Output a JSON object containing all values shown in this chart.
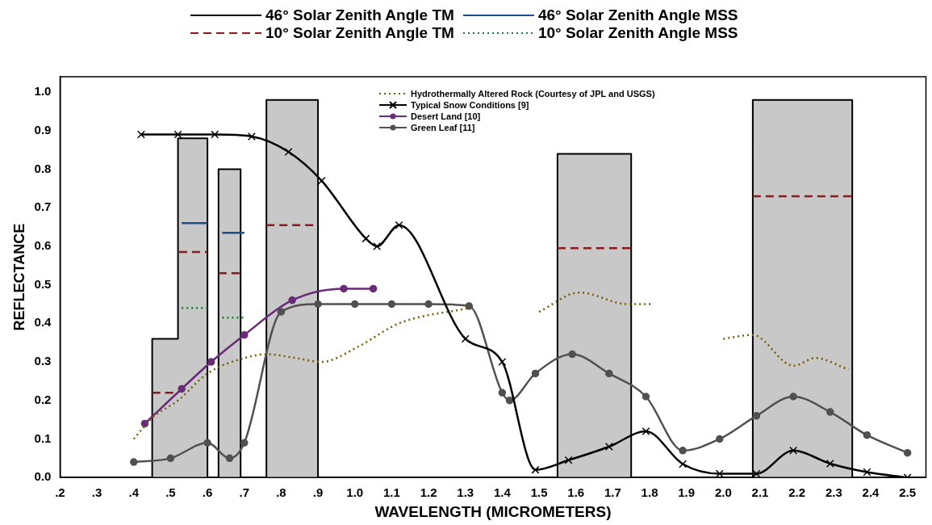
{
  "chart_data": {
    "type": "line",
    "xlabel": "WAVELENGTH (MICROMETERS)",
    "ylabel": "REFLECTANCE",
    "legend": "top",
    "grid": false,
    "xlim": [
      0.2,
      2.55
    ],
    "ylim": [
      0,
      1.04
    ],
    "xticks": [
      {
        "value": 0.2,
        "label": ".2"
      },
      {
        "value": 0.3,
        "label": ".3"
      },
      {
        "value": 0.4,
        "label": ".4"
      },
      {
        "value": 0.5,
        "label": ".5"
      },
      {
        "value": 0.6,
        "label": ".6"
      },
      {
        "value": 0.7,
        "label": ".7"
      },
      {
        "value": 0.8,
        "label": ".8"
      },
      {
        "value": 0.9,
        "label": ".9"
      },
      {
        "value": 1.0,
        "label": "1.0"
      },
      {
        "value": 1.1,
        "label": "1.1"
      },
      {
        "value": 1.2,
        "label": "1.2"
      },
      {
        "value": 1.3,
        "label": "1.3"
      },
      {
        "value": 1.4,
        "label": "1.4"
      },
      {
        "value": 1.5,
        "label": "1.5"
      },
      {
        "value": 1.6,
        "label": "1.6"
      },
      {
        "value": 1.7,
        "label": "1.7"
      },
      {
        "value": 1.8,
        "label": "1.8"
      },
      {
        "value": 1.9,
        "label": "1.9"
      },
      {
        "value": 2.0,
        "label": "2.0"
      },
      {
        "value": 2.1,
        "label": "2.1"
      },
      {
        "value": 2.2,
        "label": "2.2"
      },
      {
        "value": 2.3,
        "label": "2.3"
      },
      {
        "value": 2.4,
        "label": "2.4"
      },
      {
        "value": 2.5,
        "label": "2.5"
      }
    ],
    "yticks": [
      {
        "value": 0,
        "label": "0.0"
      },
      {
        "value": 0.1,
        "label": "0.1"
      },
      {
        "value": 0.2,
        "label": "0.2"
      },
      {
        "value": 0.3,
        "label": "0.3"
      },
      {
        "value": 0.4,
        "label": "0.4"
      },
      {
        "value": 0.5,
        "label": "0.5"
      },
      {
        "value": 0.6,
        "label": "0.6"
      },
      {
        "value": 0.7,
        "label": "0.7"
      },
      {
        "value": 0.8,
        "label": "0.8"
      },
      {
        "value": 0.9,
        "label": "0.9"
      },
      {
        "value": 1.0,
        "label": "1.0"
      }
    ],
    "series": [
      {
        "name": "46° Solar Zenith Angle TM",
        "type": "area",
        "color": "#c8c8c8",
        "line_style": "solid",
        "marker": "none",
        "x": [
          0.45,
          0.45,
          0.52,
          0.52,
          0.6,
          0.6,
          0.615,
          0.63,
          0.63,
          0.69,
          0.69,
          0.725,
          0.76,
          0.76,
          0.9,
          0.9,
          1.2,
          1.55,
          1.55,
          1.75,
          1.75,
          1.9,
          2.08,
          2.08,
          2.35,
          2.35
        ],
        "values": [
          0,
          0.36,
          0.36,
          0.88,
          0.88,
          0,
          null,
          0,
          0.8,
          0.8,
          0,
          null,
          0,
          0.98,
          0.98,
          0,
          null,
          0,
          0.84,
          0.84,
          0,
          null,
          0,
          0.98,
          0.98,
          0
        ]
      },
      {
        "name": "10° Solar Zenith Angle TM",
        "type": "line",
        "color": "#8b1a1a",
        "line_style": "dashed",
        "marker": "none",
        "x": [
          0.45,
          0.485,
          0.52,
          0.521,
          0.523,
          0.56,
          0.6,
          0.61,
          0.63,
          0.66,
          0.69,
          0.72,
          0.76,
          0.83,
          0.9,
          1.2,
          1.55,
          1.65,
          1.75,
          1.9,
          2.08,
          2.2,
          2.35
        ],
        "values": [
          0.22,
          0.22,
          0.22,
          null,
          0.585,
          0.585,
          0.585,
          null,
          0.53,
          0.53,
          0.53,
          null,
          0.655,
          0.655,
          0.655,
          null,
          0.595,
          0.595,
          0.595,
          null,
          0.73,
          0.73,
          0.73
        ]
      },
      {
        "name": "46° Solar Zenith Angle MSS",
        "type": "line",
        "color": "#1a4f8b",
        "line_style": "solid",
        "marker": "none",
        "x": [
          0.53,
          0.565,
          0.6,
          0.62,
          0.64,
          0.67,
          0.7
        ],
        "values": [
          0.66,
          0.66,
          0.66,
          null,
          0.635,
          0.635,
          0.635
        ]
      },
      {
        "name": "10° Solar Zenith Angle MSS",
        "type": "line",
        "color": "#1a7a2e",
        "line_style": "dotted",
        "marker": "none",
        "x": [
          0.53,
          0.565,
          0.6,
          0.62,
          0.64,
          0.67,
          0.7
        ],
        "values": [
          0.44,
          0.44,
          0.44,
          null,
          0.415,
          0.415,
          0.415
        ]
      },
      {
        "name": "Hydrothermally Altered Rock (Courtesy of JPL and USGS)",
        "type": "line",
        "color": "#7a5a00",
        "line_style": "dotted",
        "marker": "none",
        "x": [
          0.4,
          0.45,
          0.52,
          0.6,
          0.7,
          0.76,
          0.84,
          0.91,
          1.01,
          1.12,
          1.31,
          1.4,
          1.5,
          1.61,
          1.74,
          1.81,
          1.9,
          2.0,
          2.08,
          2.19,
          2.25,
          2.34
        ],
        "values": [
          0.1,
          0.155,
          0.2,
          0.27,
          0.31,
          0.32,
          0.31,
          0.3,
          0.34,
          0.4,
          0.44,
          null,
          0.43,
          0.48,
          0.45,
          0.45,
          null,
          0.36,
          0.37,
          0.29,
          0.31,
          0.28
        ]
      },
      {
        "name": "Typical Snow Conditions [9]",
        "type": "line",
        "color": "#000000",
        "line_style": "solid",
        "marker": "cross",
        "x": [
          0.42,
          0.52,
          0.62,
          0.72,
          0.82,
          0.91,
          1.03,
          1.06,
          1.12,
          1.3,
          1.4,
          1.49,
          1.58,
          1.69,
          1.79,
          1.89,
          1.99,
          2.09,
          2.19,
          2.29,
          2.39,
          2.5
        ],
        "values": [
          0.89,
          0.89,
          0.89,
          0.885,
          0.845,
          0.77,
          0.62,
          0.6,
          0.655,
          0.36,
          0.3,
          0.02,
          0.045,
          0.08,
          0.12,
          0.035,
          0.01,
          0.01,
          0.07,
          0.036,
          0.014,
          0.0
        ]
      },
      {
        "name": "Desert Land [10]",
        "type": "line",
        "color": "#6a2a7a",
        "line_style": "solid",
        "marker": "circle",
        "x": [
          0.43,
          0.53,
          0.61,
          0.7,
          0.83,
          0.97,
          1.05
        ],
        "values": [
          0.14,
          0.23,
          0.3,
          0.37,
          0.46,
          0.49,
          0.49
        ]
      },
      {
        "name": "Green Leaf [11]",
        "type": "line",
        "color": "#505050",
        "line_style": "solid",
        "marker": "circle",
        "x": [
          0.4,
          0.5,
          0.6,
          0.66,
          0.7,
          0.8,
          0.9,
          1.0,
          1.1,
          1.2,
          1.31,
          1.4,
          1.42,
          1.49,
          1.59,
          1.69,
          1.79,
          1.89,
          1.99,
          2.09,
          2.19,
          2.29,
          2.39,
          2.5
        ],
        "values": [
          0.04,
          0.05,
          0.09,
          0.05,
          0.09,
          0.43,
          0.45,
          0.45,
          0.45,
          0.45,
          0.445,
          0.22,
          0.2,
          0.27,
          0.32,
          0.27,
          0.21,
          0.07,
          0.1,
          0.16,
          0.21,
          0.17,
          0.11,
          0.064
        ]
      }
    ]
  }
}
